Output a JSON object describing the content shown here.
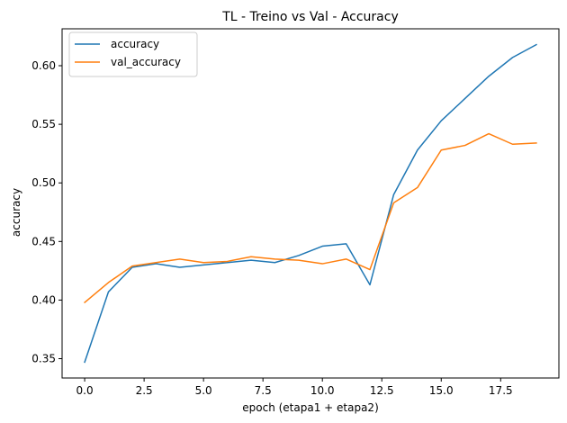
{
  "chart_data": {
    "type": "line",
    "title": "TL - Treino vs Val - Accuracy",
    "xlabel": "epoch (etapa1 + etapa2)",
    "ylabel": "accuracy",
    "xlim": [
      -0.95,
      19.95
    ],
    "ylim": [
      0.3335,
      0.6315
    ],
    "x_ticks": [
      0.0,
      2.5,
      5.0,
      7.5,
      10.0,
      12.5,
      15.0,
      17.5
    ],
    "x_tick_labels": [
      "0.0",
      "2.5",
      "5.0",
      "7.5",
      "10.0",
      "12.5",
      "15.0",
      "17.5"
    ],
    "y_ticks": [
      0.35,
      0.4,
      0.45,
      0.5,
      0.55,
      0.6
    ],
    "y_tick_labels": [
      "0.35",
      "0.40",
      "0.45",
      "0.50",
      "0.55",
      "0.60"
    ],
    "grid": false,
    "legend_position": "upper-left",
    "x": [
      0,
      1,
      2,
      3,
      4,
      5,
      6,
      7,
      8,
      9,
      10,
      11,
      12,
      13,
      14,
      15,
      16,
      17,
      18,
      19
    ],
    "series": [
      {
        "name": "accuracy",
        "color": "#1f77b4",
        "values": [
          0.347,
          0.407,
          0.428,
          0.431,
          0.428,
          0.43,
          0.432,
          0.434,
          0.432,
          0.438,
          0.446,
          0.448,
          0.413,
          0.49,
          0.528,
          0.553,
          0.572,
          0.591,
          0.607,
          0.618
        ]
      },
      {
        "name": "val_accuracy",
        "color": "#ff7f0e",
        "values": [
          0.398,
          0.415,
          0.429,
          0.432,
          0.435,
          0.432,
          0.433,
          0.437,
          0.435,
          0.434,
          0.431,
          0.435,
          0.426,
          0.483,
          0.496,
          0.528,
          0.532,
          0.542,
          0.533,
          0.534
        ]
      }
    ]
  }
}
